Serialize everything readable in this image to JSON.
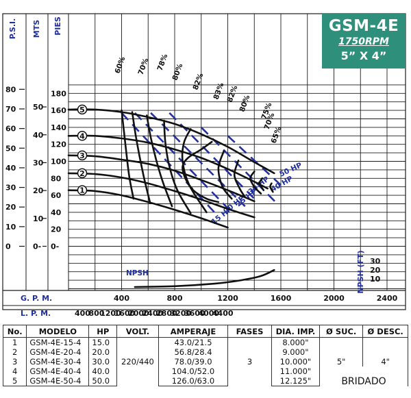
{
  "title": {
    "model": "GSM-4E",
    "rpm": "1750RPM",
    "size": "5” X 4”"
  },
  "colors": {
    "series": "#111111",
    "hp": "#1f2f9e",
    "title_bg": "#2e8f7a"
  },
  "chart_data": {
    "type": "line",
    "axes": {
      "psi": {
        "label": "P.S.I.",
        "ticks": [
          "80",
          "70",
          "60",
          "50",
          "40",
          "30",
          "20",
          "10",
          "0"
        ]
      },
      "mts": {
        "label": "MTS",
        "ticks": [
          "50",
          "40",
          "30",
          "20",
          "10",
          "0"
        ]
      },
      "pies": {
        "label": "PIES",
        "ticks": [
          "180",
          "160",
          "140",
          "120",
          "100",
          "80",
          "60",
          "40",
          "20",
          "0"
        ],
        "range": [
          0,
          180
        ]
      },
      "gpm": {
        "label": "G. P. M.",
        "ticks": [
          "400",
          "800",
          "1200",
          "1600",
          "2000",
          "2400"
        ],
        "range": [
          0,
          2600
        ]
      },
      "lpm": {
        "label": "L. P. M.",
        "ticks": [
          "400",
          "800",
          "1200",
          "1600",
          "2000",
          "2400",
          "2800",
          "3200",
          "3600",
          "4000",
          "4400"
        ]
      },
      "npsh": {
        "label": "NPSH (FT)",
        "ticks": [
          "30",
          "20",
          "10"
        ]
      }
    },
    "series": [
      {
        "name": "1",
        "x": [
          0,
          200,
          400,
          600,
          800,
          1000,
          1200
        ],
        "y": [
          66,
          65,
          60,
          52,
          43,
          33,
          22
        ]
      },
      {
        "name": "2",
        "x": [
          0,
          200,
          400,
          600,
          800,
          1000,
          1200,
          1400
        ],
        "y": [
          86,
          85,
          81,
          74,
          65,
          55,
          44,
          34
        ]
      },
      {
        "name": "3",
        "x": [
          0,
          200,
          400,
          600,
          800,
          1000,
          1200,
          1400
        ],
        "y": [
          107,
          106,
          102,
          97,
          89,
          78,
          66,
          53
        ]
      },
      {
        "name": "4",
        "x": [
          0,
          200,
          400,
          600,
          800,
          1000,
          1200,
          1400,
          1500
        ],
        "y": [
          130,
          130,
          127,
          122,
          114,
          104,
          91,
          76,
          68
        ]
      },
      {
        "name": "5",
        "x": [
          0,
          200,
          400,
          600,
          800,
          1000,
          1200,
          1400,
          1550
        ],
        "y": [
          161,
          161,
          158,
          152,
          144,
          132,
          117,
          99,
          86
        ]
      },
      {
        "name": "NPSH",
        "x": [
          500,
          800,
          1100,
          1300,
          1450,
          1550
        ],
        "y": [
          -48,
          -47,
          -44,
          -40,
          -35,
          -28
        ]
      }
    ],
    "efficiency": [
      {
        "label": "60%",
        "x": [
          400,
          420,
          440,
          460,
          490
        ],
        "y": [
          160,
          132,
          104,
          80,
          56
        ]
      },
      {
        "label": "70%",
        "x": [
          480,
          505,
          535,
          570,
          615
        ],
        "y": [
          158,
          132,
          106,
          80,
          51
        ]
      },
      {
        "label": "78%",
        "x": [
          590,
          620,
          660,
          710,
          780
        ],
        "y": [
          154,
          128,
          102,
          76,
          47
        ]
      },
      {
        "label": "80%",
        "x": [
          720,
          730,
          760,
          820,
          920
        ],
        "y": [
          148,
          122,
          94,
          66,
          39
        ]
      },
      {
        "label": "82%",
        "x": [
          920,
          870,
          860,
          910,
          1040
        ],
        "y": [
          138,
          122,
          100,
          72,
          40
        ]
      },
      {
        "label": "83%",
        "x": [
          1080,
          1000,
          900,
          860,
          880,
          940,
          1040,
          1130
        ],
        "y": [
          123,
          114,
          104,
          94,
          80,
          66,
          56,
          52
        ]
      },
      {
        "label": "82%",
        "x": [
          1170,
          1130,
          1160,
          1230
        ],
        "y": [
          112,
          92,
          70,
          56
        ]
      },
      {
        "label": "80%",
        "x": [
          1280,
          1250,
          1290,
          1330
        ],
        "y": [
          101,
          84,
          68,
          58
        ]
      },
      {
        "label": "75%",
        "x": [
          1400,
          1370,
          1400,
          1450
        ],
        "y": [
          88,
          80,
          70,
          62
        ]
      },
      {
        "label": "70%",
        "x": [
          1460,
          1440,
          1470
        ],
        "y": [
          80,
          74,
          66
        ]
      },
      {
        "label": "65%",
        "x": [
          1530,
          1520,
          1540
        ],
        "y": [
          74,
          70,
          64
        ]
      }
    ],
    "hp_lines": [
      {
        "label": "15 HP",
        "x": [
          400,
          1100
        ],
        "y": [
          157,
          40
        ]
      },
      {
        "label": "20 HP",
        "x": [
          500,
          1230
        ],
        "y": [
          157,
          40
        ]
      },
      {
        "label": "25 HP",
        "x": [
          620,
          1330
        ],
        "y": [
          157,
          47
        ]
      },
      {
        "label": "30 HP",
        "x": [
          760,
          1400
        ],
        "y": [
          157,
          56
        ]
      },
      {
        "label": "40 HP",
        "x": [
          1000,
          1560
        ],
        "y": [
          140,
          52
        ]
      },
      {
        "label": "50 HP",
        "x": [
          1200,
          1600
        ],
        "y": [
          130,
          72
        ]
      }
    ],
    "npsh_label": "NPSH"
  },
  "table": {
    "headers": [
      "No.",
      "MODELO",
      "HP",
      "VOLT.",
      "AMPERAJE",
      "FASES",
      "DIA. IMP.",
      "Ø SUC.",
      "Ø DESC."
    ],
    "rows": [
      {
        "no": "1",
        "modelo": "GSM-4E-15-4",
        "hp": "15.0",
        "amp": "43.0/21.5",
        "dia": "8.000\""
      },
      {
        "no": "2",
        "modelo": "GSM-4E-20-4",
        "hp": "20.0",
        "amp": "56.8/28.4",
        "dia": "9.000\""
      },
      {
        "no": "3",
        "modelo": "GSM-4E-30-4",
        "hp": "30.0",
        "amp": "78.0/39.0",
        "dia": "10.000\""
      },
      {
        "no": "4",
        "modelo": "GSM-4E-40-4",
        "hp": "40.0",
        "amp": "104.0/52.0",
        "dia": "11.000\""
      },
      {
        "no": "5",
        "modelo": "GSM-4E-50-4",
        "hp": "50.0",
        "amp": "126.0/63.0",
        "dia": "12.125\""
      }
    ],
    "volt": "220/440",
    "fases": "3",
    "suc": "5\"",
    "desc": "4\"",
    "bridado": "BRIDADO"
  }
}
